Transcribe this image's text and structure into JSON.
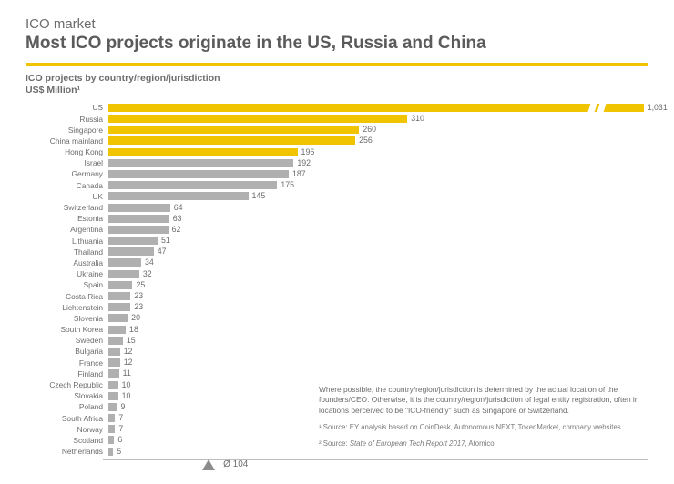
{
  "header": {
    "eyebrow": "ICO market",
    "title": "Most ICO projects originate in the US, Russia and China"
  },
  "chart": {
    "type": "bar",
    "ylabel_line1": "ICO projects by country/region/jurisdiction",
    "ylabel_line2": "US$ Million¹",
    "x_max": 560,
    "us_display_width": 555,
    "colors": {
      "highlight": "#f0c400",
      "normal": "#b0b0b0"
    },
    "avg": {
      "value": 104,
      "label": "Ø 104"
    },
    "data": [
      {
        "label": "US",
        "value": 1031,
        "display": "1,031",
        "hl": true,
        "us": true
      },
      {
        "label": "Russia",
        "value": 310,
        "hl": true
      },
      {
        "label": "Singapore",
        "value": 260,
        "hl": true
      },
      {
        "label": "China mainland",
        "value": 256,
        "hl": true
      },
      {
        "label": "Hong Kong",
        "value": 196,
        "hl": true
      },
      {
        "label": "Israel",
        "value": 192
      },
      {
        "label": "Germany",
        "value": 187
      },
      {
        "label": "Canada",
        "value": 175
      },
      {
        "label": "UK",
        "value": 145
      },
      {
        "label": "Switzerland",
        "value": 64
      },
      {
        "label": "Estonia",
        "value": 63
      },
      {
        "label": "Argentina",
        "value": 62
      },
      {
        "label": "Lithuania",
        "value": 51
      },
      {
        "label": "Thailand",
        "value": 47
      },
      {
        "label": "Australia",
        "value": 34
      },
      {
        "label": "Ukraine",
        "value": 32
      },
      {
        "label": "Spain",
        "value": 25
      },
      {
        "label": "Costa Rica",
        "value": 23
      },
      {
        "label": "Lichtenstein",
        "value": 23
      },
      {
        "label": "Slovenia",
        "value": 20
      },
      {
        "label": "South Korea",
        "value": 18
      },
      {
        "label": "Sweden",
        "value": 15
      },
      {
        "label": "Bulgaria",
        "value": 12
      },
      {
        "label": "France",
        "value": 12
      },
      {
        "label": "Finland",
        "value": 11
      },
      {
        "label": "Czech Republic",
        "value": 10
      },
      {
        "label": "Slovakia",
        "value": 10
      },
      {
        "label": "Poland",
        "value": 9
      },
      {
        "label": "South Africa",
        "value": 7
      },
      {
        "label": "Norway",
        "value": 7
      },
      {
        "label": "Scotland",
        "value": 6
      },
      {
        "label": "Netherlands",
        "value": 5
      }
    ]
  },
  "notes": {
    "body": "Where possible, the country/region/jurisdiction is determined by the actual location of the founders/CEO. Otherwise, it is the country/region/jurisdiction of legal entity registration, often in locations perceived to be \"ICO-friendly\" such as Singapore or Switzerland.",
    "fn1": "¹ Source: EY analysis based on CoinDesk, Autonomous NEXT, TokenMarket, company websites",
    "fn2_prefix": "² Source: ",
    "fn2_italic": "State of European Tech Report 2017",
    "fn2_suffix": ", Atomico"
  }
}
